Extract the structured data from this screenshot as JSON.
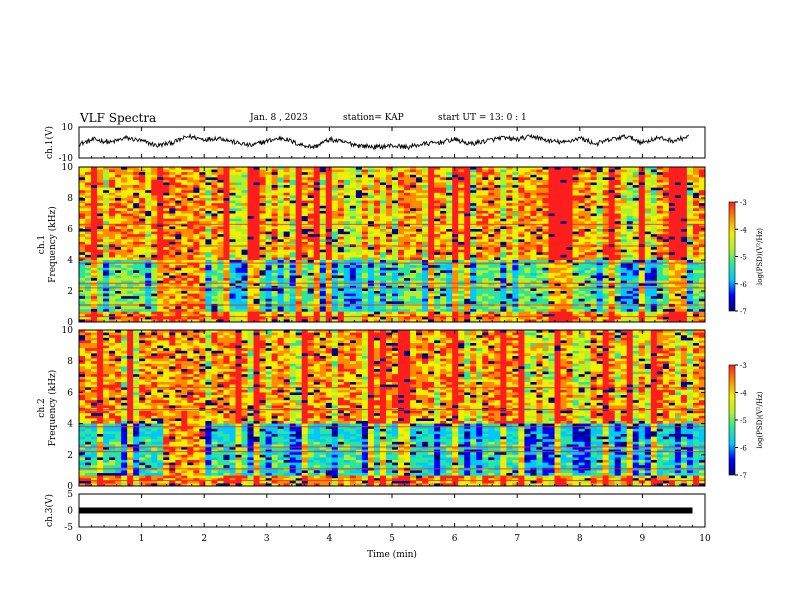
{
  "header": {
    "title": "VLF Spectra",
    "date": "Jan. 8 , 2023",
    "station": "station= KAP",
    "start": "start UT = 13: 0 : 1"
  },
  "chart_data": [
    {
      "type": "line",
      "panel": "waveform-ch1",
      "ylabel": "ch.1(V)",
      "ylim": [
        -10,
        10
      ],
      "yticks": [
        "10",
        "-10"
      ],
      "x": [
        0,
        0.25,
        0.5,
        0.75,
        1,
        1.25,
        1.5,
        1.75,
        2,
        2.25,
        2.5,
        2.75,
        3,
        3.25,
        3.5,
        3.75,
        4,
        4.25,
        4.5,
        4.75,
        5,
        5.25,
        5.5,
        5.75,
        6,
        6.25,
        6.5,
        6.75,
        7,
        7.25,
        7.5,
        7.75,
        8,
        8.25,
        8.5,
        8.75,
        9,
        9.25,
        9.5,
        9.75
      ],
      "y": [
        -1,
        2,
        0,
        3,
        1,
        -2,
        0,
        4,
        2,
        3,
        0,
        -2,
        1,
        3,
        -1,
        -3,
        2,
        0,
        -2,
        -3,
        -2,
        -3,
        -1,
        0,
        2,
        -1,
        1,
        3,
        2,
        4,
        1,
        0,
        3,
        -1,
        2,
        4,
        0,
        3,
        1,
        4
      ]
    },
    {
      "type": "heatmap",
      "panel": "spectrogram-ch1",
      "ylabel": "ch.1 Frequency (kHz)",
      "yticks": [
        "0",
        "2",
        "4",
        "6",
        "8",
        "10"
      ],
      "ylim": [
        0,
        10
      ],
      "colorbar": {
        "label": "log(PSD)(V²/Hz)",
        "ticks": [
          "-3",
          "-4",
          "-5",
          "-6",
          "-7"
        ],
        "range": [
          -7,
          -3
        ]
      },
      "colors": [
        "#000080",
        "#0000ff",
        "#00c8ff",
        "#28e6a0",
        "#b4f028",
        "#f0f000",
        "#ff8c00",
        "#ff1e1e"
      ]
    },
    {
      "type": "heatmap",
      "panel": "spectrogram-ch2",
      "ylabel": "ch.2 Frequency (kHz)",
      "yticks": [
        "0",
        "2",
        "4",
        "6",
        "8",
        "10"
      ],
      "ylim": [
        0,
        10
      ],
      "colorbar": {
        "label": "log(PSD)(V²/Hz)",
        "ticks": [
          "-3",
          "-4",
          "-5",
          "-6",
          "-7"
        ],
        "range": [
          -7,
          -3
        ]
      },
      "colors": [
        "#000080",
        "#0000ff",
        "#00c8ff",
        "#28e6a0",
        "#b4f028",
        "#f0f000",
        "#ff8c00",
        "#ff1e1e"
      ]
    },
    {
      "type": "line",
      "panel": "waveform-ch3",
      "ylabel": "ch.3(V)",
      "ylim": [
        -5,
        5
      ],
      "yticks": [
        "5",
        "0",
        "-5"
      ],
      "x": [
        0,
        9.8
      ],
      "y": [
        0,
        0
      ]
    }
  ],
  "xaxis": {
    "label": "Time (min)",
    "ticks": [
      "0",
      "1",
      "2",
      "3",
      "4",
      "5",
      "6",
      "7",
      "8",
      "9",
      "10"
    ],
    "xlim": [
      0,
      10
    ]
  }
}
